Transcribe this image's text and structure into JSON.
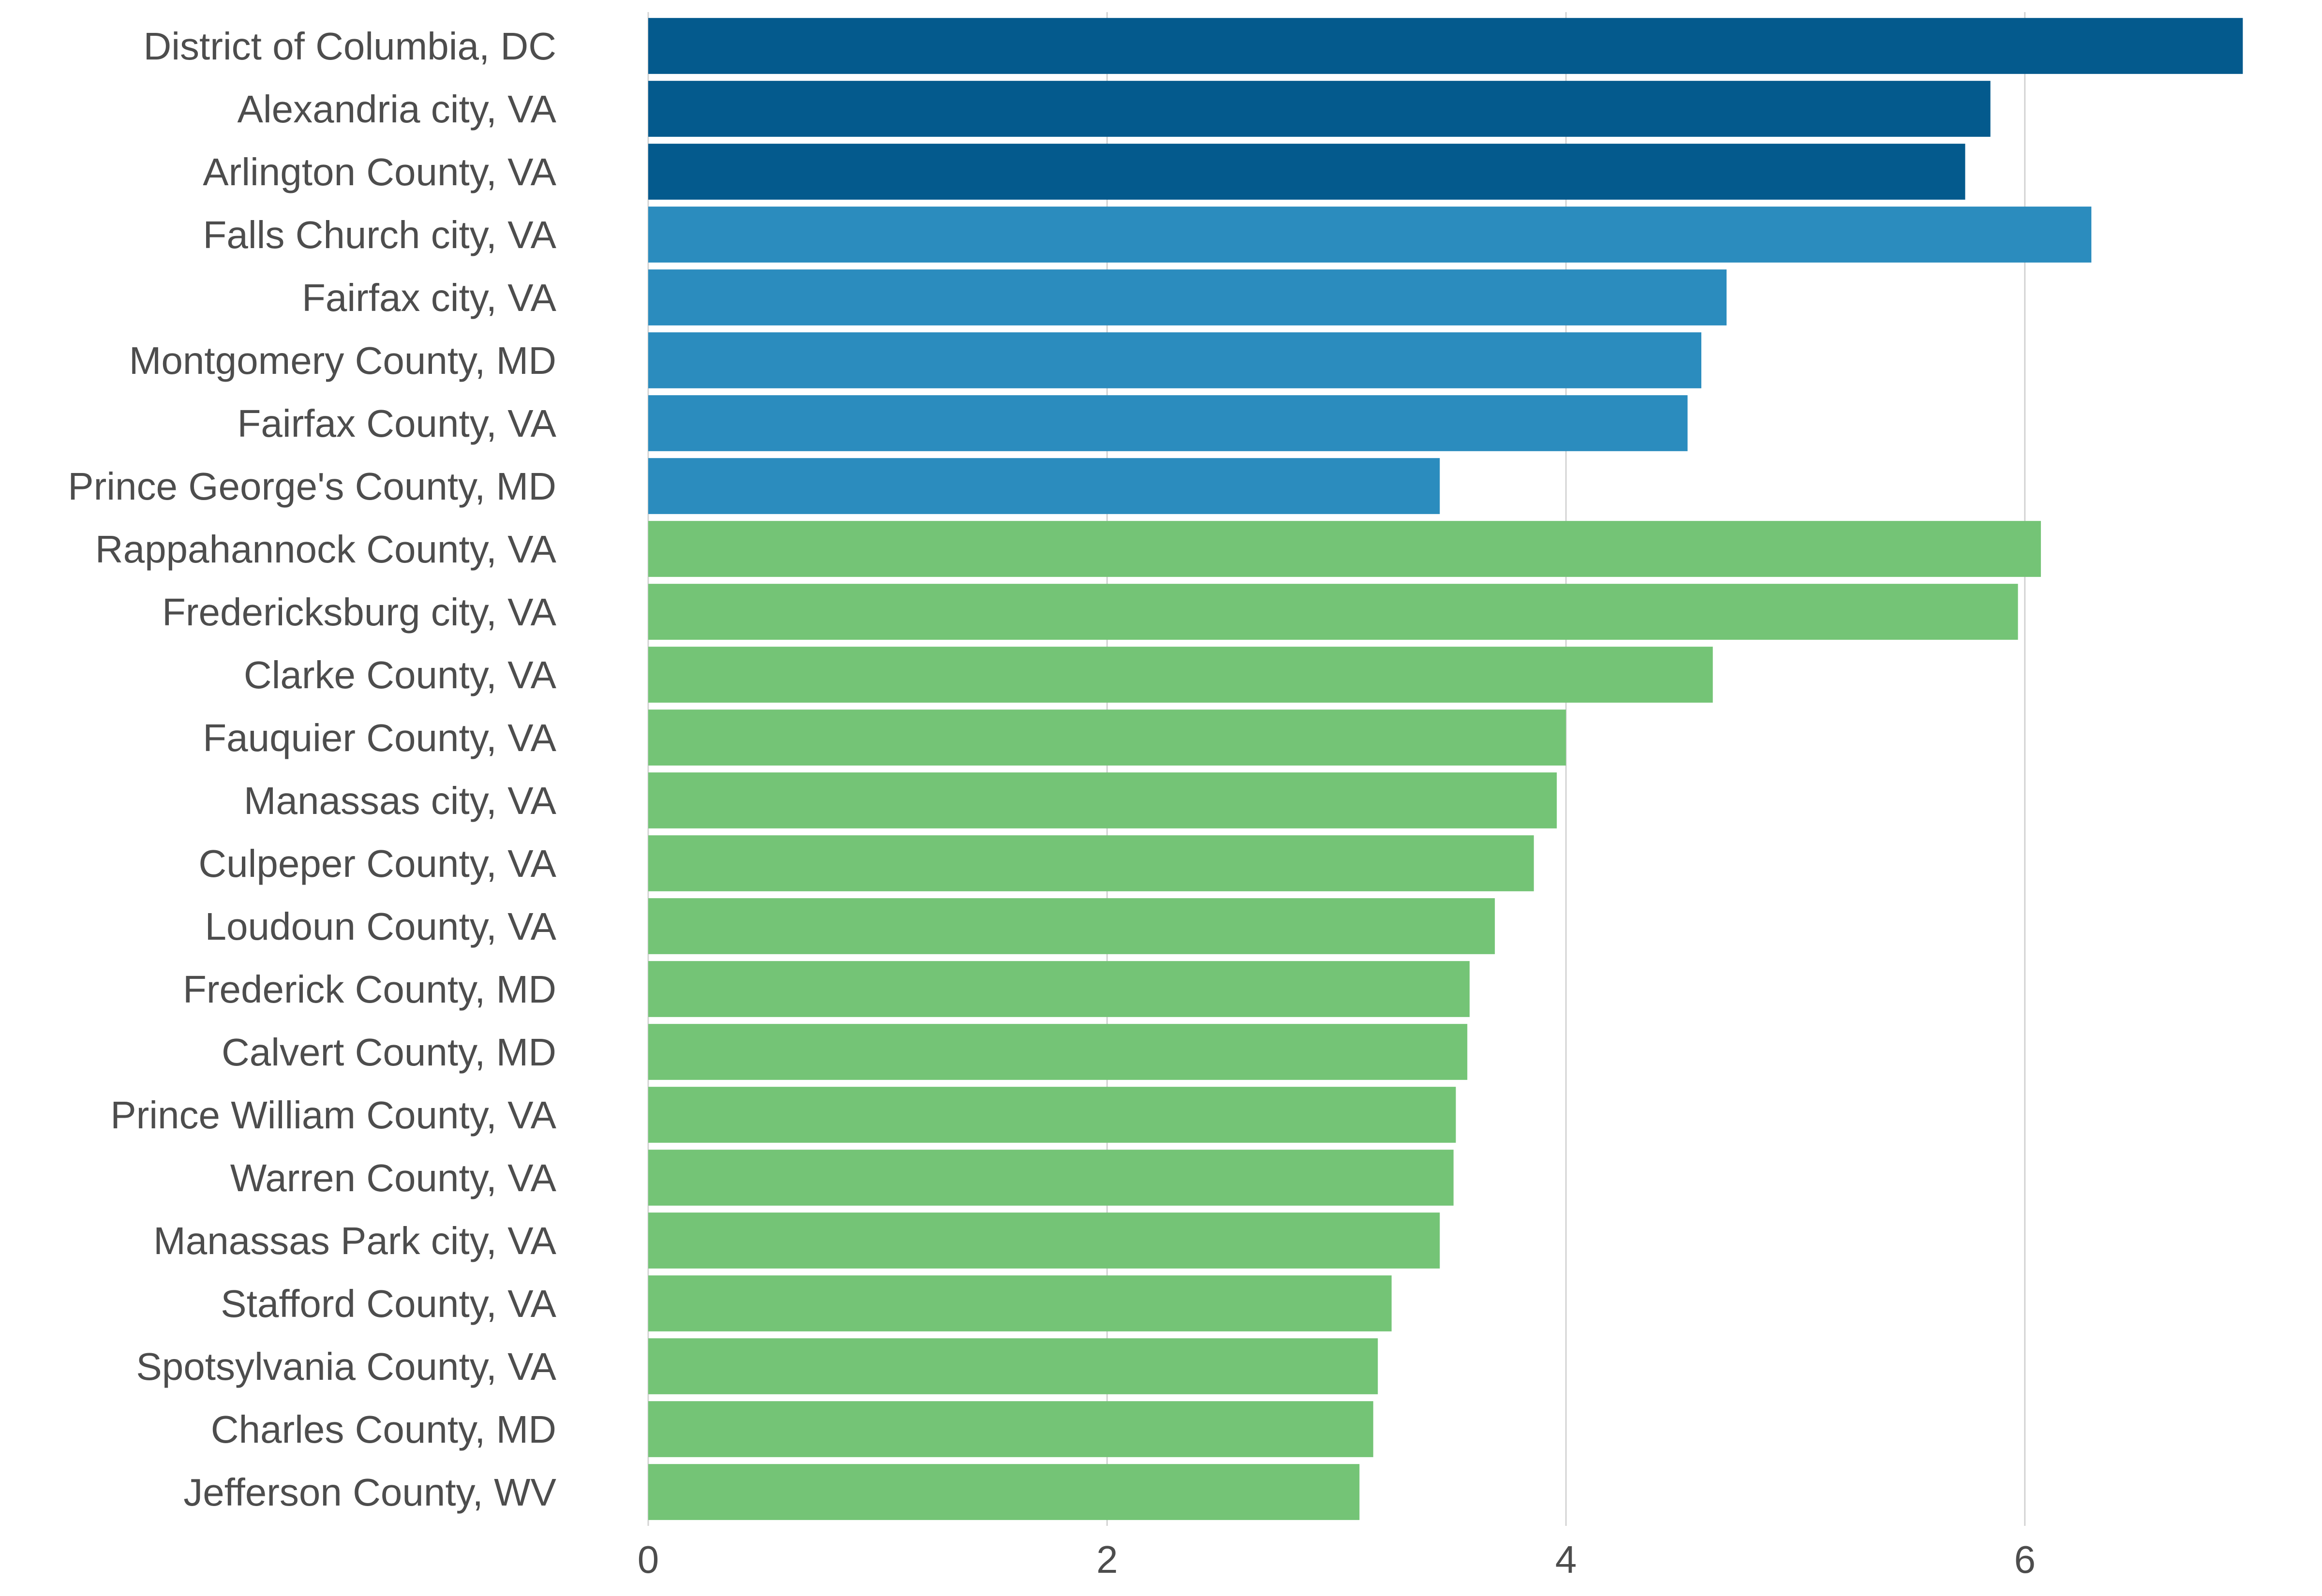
{
  "chart_data": {
    "type": "bar",
    "orientation": "horizontal",
    "title": "",
    "xlabel": "",
    "ylabel": "",
    "xlim": [
      0,
      7.0
    ],
    "xticks": [
      0,
      2,
      4,
      6
    ],
    "grid": "vertical",
    "legend": "none",
    "colors": {
      "dark_blue": "#045a8d",
      "mid_blue": "#2b8cbe",
      "green": "#74c476"
    },
    "categories": [
      "District of Columbia, DC",
      "Alexandria city, VA",
      "Arlington County, VA",
      "Falls Church city, VA",
      "Fairfax city, VA",
      "Montgomery County, MD",
      "Fairfax County, VA",
      "Prince George's County, MD",
      "Rappahannock County, VA",
      "Fredericksburg city, VA",
      "Clarke County, VA",
      "Fauquier County, VA",
      "Manassas city, VA",
      "Culpeper County, VA",
      "Loudoun County, VA",
      "Frederick County, MD",
      "Calvert County, MD",
      "Prince William County, VA",
      "Warren County, VA",
      "Manassas Park city, VA",
      "Stafford County, VA",
      "Spotsylvania County, VA",
      "Charles County, MD",
      "Jefferson County, WV"
    ],
    "values": [
      6.95,
      5.85,
      5.74,
      6.29,
      4.7,
      4.59,
      4.53,
      3.45,
      6.07,
      5.97,
      4.64,
      4.0,
      3.96,
      3.86,
      3.69,
      3.58,
      3.57,
      3.52,
      3.51,
      3.45,
      3.24,
      3.18,
      3.16,
      3.1
    ],
    "bar_colors": [
      "dark_blue",
      "dark_blue",
      "dark_blue",
      "mid_blue",
      "mid_blue",
      "mid_blue",
      "mid_blue",
      "mid_blue",
      "green",
      "green",
      "green",
      "green",
      "green",
      "green",
      "green",
      "green",
      "green",
      "green",
      "green",
      "green",
      "green",
      "green",
      "green",
      "green"
    ]
  }
}
